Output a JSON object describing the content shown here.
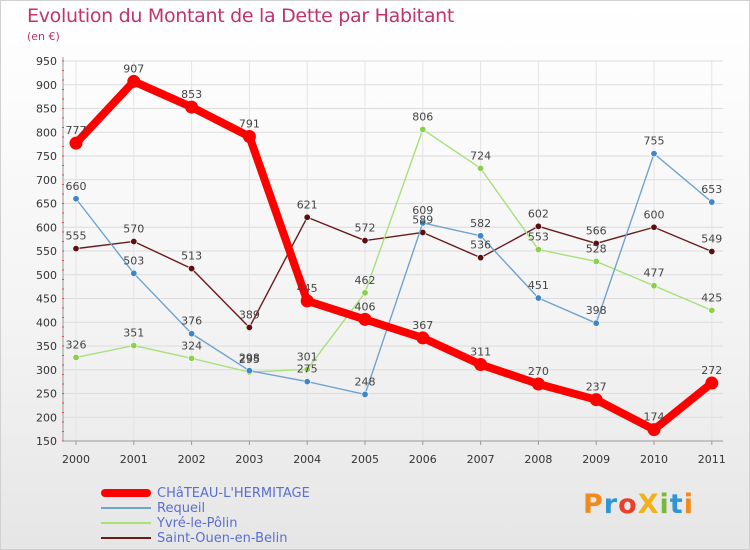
{
  "chart_data": {
    "type": "line",
    "title": "Evolution du Montant de la Dette par Habitant",
    "subtitle": "(en €)",
    "categories": [
      "2000",
      "2001",
      "2002",
      "2003",
      "2004",
      "2005",
      "2006",
      "2007",
      "2008",
      "2009",
      "2010",
      "2011"
    ],
    "yticks": [
      150,
      200,
      250,
      300,
      350,
      400,
      450,
      500,
      550,
      600,
      650,
      700,
      750,
      800,
      850,
      900,
      950
    ],
    "ylim": [
      150,
      950
    ],
    "grid": true,
    "legend_position": "bottom-left",
    "series": [
      {
        "name": "Saint-Ouen-en-Belin",
        "color": "#6b1a1a",
        "marker": "#5a1010",
        "values": [
          555,
          570,
          513,
          389,
          621,
          572,
          589,
          536,
          602,
          566,
          600,
          549
        ]
      },
      {
        "name": "Yvré-le-Pôlin",
        "color": "#a8e07a",
        "marker": "#8ad04e",
        "values": [
          326,
          351,
          324,
          295,
          301,
          462,
          806,
          724,
          553,
          528,
          477,
          425
        ]
      },
      {
        "name": "Requeil",
        "color": "#6fa3d0",
        "marker": "#3f86c8",
        "values": [
          660,
          503,
          376,
          298,
          275,
          248,
          609,
          582,
          451,
          398,
          755,
          653
        ]
      },
      {
        "name": "CHâTEAU-L'HERMITAGE",
        "color": "#ff0000",
        "marker": "#ff0000",
        "values": [
          777,
          907,
          853,
          791,
          445,
          406,
          367,
          311,
          270,
          237,
          174,
          272
        ]
      }
    ],
    "legend": [
      {
        "name": "CHâTEAU-L'HERMITAGE",
        "color": "#ff0000",
        "thickness": 8
      },
      {
        "name": "Requeil",
        "color": "#6fa3d0",
        "thickness": 2
      },
      {
        "name": "Yvré-le-Pôlin",
        "color": "#a8e07a",
        "thickness": 2
      },
      {
        "name": "Saint-Ouen-en-Belin",
        "color": "#6b1a1a",
        "thickness": 2
      }
    ]
  },
  "branding": {
    "logo_text": "ProXiti",
    "logo_colors": [
      "#f08a1c",
      "#2f95d5",
      "#e8402a",
      "#f0b21a",
      "#7ab83c",
      "#2f95d5",
      "#f08a1c"
    ]
  }
}
